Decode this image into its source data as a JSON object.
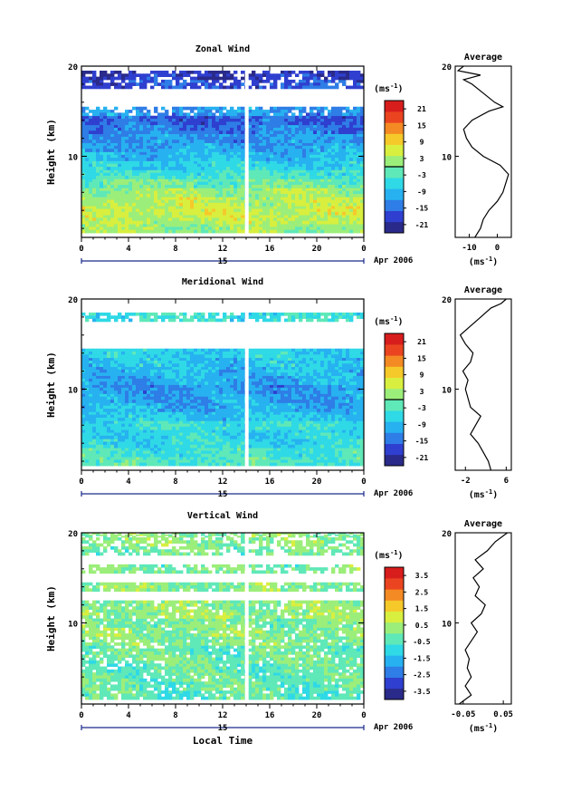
{
  "chart_data": [
    {
      "type": "heatmap",
      "title": "Zonal Wind",
      "ylabel": "Height (km)",
      "xticks": [
        "0",
        "4",
        "8",
        "12",
        "16",
        "20",
        "0"
      ],
      "x_day": "15",
      "x_month": "Apr 2006",
      "xlim": [
        0,
        24
      ],
      "ylim": [
        1,
        20
      ],
      "yticks": [
        "20",
        "10"
      ],
      "colorbar": {
        "unit_base": "(ms",
        "unit_exp": "-1",
        "unit_close": ")",
        "ticks": [
          "21",
          "15",
          "9",
          "3",
          "-3",
          "-9",
          "-15",
          "-21"
        ],
        "range": [
          -24,
          24
        ],
        "zero_line": 0
      },
      "profile": {
        "title": "Average",
        "xticks": [
          "-10",
          "0"
        ],
        "xlim": [
          -15,
          5
        ],
        "unit_base": "(ms",
        "unit_exp": "-1",
        "unit_close": ")",
        "points": [
          [
            -8,
            1
          ],
          [
            -6,
            2
          ],
          [
            -5,
            3
          ],
          [
            -3,
            4
          ],
          [
            0,
            5
          ],
          [
            2,
            6
          ],
          [
            3,
            7
          ],
          [
            4,
            8
          ],
          [
            1,
            9
          ],
          [
            -5,
            10
          ],
          [
            -9,
            11
          ],
          [
            -11,
            12
          ],
          [
            -12,
            13
          ],
          [
            -9,
            14
          ],
          [
            -3,
            15
          ],
          [
            2,
            15.5
          ],
          [
            -1,
            16
          ],
          [
            -5,
            17
          ],
          [
            -9,
            18
          ],
          [
            -12,
            18.5
          ],
          [
            -6,
            19
          ],
          [
            -14,
            19.5
          ],
          [
            -12,
            20
          ]
        ]
      },
      "field": {
        "rows": [
          {
            "h": 2,
            "v": 2
          },
          {
            "h": 3,
            "v": 4
          },
          {
            "h": 4,
            "v": 5
          },
          {
            "h": 5,
            "v": 4
          },
          {
            "h": 6,
            "v": 2
          },
          {
            "h": 7,
            "v": -1
          },
          {
            "h": 8,
            "v": -4
          },
          {
            "h": 9,
            "v": -7
          },
          {
            "h": 10,
            "v": -9
          },
          {
            "h": 11,
            "v": -11
          },
          {
            "h": 12,
            "v": -12
          },
          {
            "h": 13,
            "v": -14
          },
          {
            "h": 14,
            "v": -16
          },
          {
            "h": 15,
            "v": -12
          },
          {
            "h": 16,
            "v": null
          },
          {
            "h": 17,
            "v": null
          },
          {
            "h": 18,
            "v": -17
          },
          {
            "h": 19,
            "v": -19
          },
          {
            "h": 20,
            "v": null
          }
        ]
      }
    },
    {
      "type": "heatmap",
      "title": "Meridional Wind",
      "ylabel": "Height (km)",
      "xticks": [
        "0",
        "4",
        "8",
        "12",
        "16",
        "20",
        "0"
      ],
      "x_day": "15",
      "x_month": "Apr 2006",
      "xlim": [
        0,
        24
      ],
      "ylim": [
        1,
        20
      ],
      "yticks": [
        "20",
        "10"
      ],
      "colorbar": {
        "unit_base": "(ms",
        "unit_exp": "-1",
        "unit_close": ")",
        "ticks": [
          "21",
          "15",
          "9",
          "3",
          "-3",
          "-9",
          "-15",
          "-21"
        ],
        "range": [
          -24,
          24
        ],
        "zero_line": 0
      },
      "profile": {
        "title": "Average",
        "xticks": [
          "-2",
          "6"
        ],
        "xlim": [
          -4,
          7
        ],
        "unit_base": "(ms",
        "unit_exp": "-1",
        "unit_close": ")",
        "points": [
          [
            3,
            1
          ],
          [
            2.5,
            2
          ],
          [
            1.5,
            3
          ],
          [
            0.5,
            4
          ],
          [
            -1,
            5
          ],
          [
            0,
            6
          ],
          [
            1,
            7
          ],
          [
            -1,
            8
          ],
          [
            -1.5,
            9
          ],
          [
            -2,
            10
          ],
          [
            -1.5,
            11
          ],
          [
            -2.5,
            12
          ],
          [
            -1,
            13
          ],
          [
            -0.5,
            14
          ],
          [
            -2,
            15
          ],
          [
            -3,
            16
          ],
          [
            -1,
            17
          ],
          [
            1,
            18
          ],
          [
            3,
            19
          ],
          [
            5,
            19.5
          ],
          [
            6,
            20
          ]
        ]
      },
      "field": {
        "rows": [
          {
            "h": 2,
            "v": -3
          },
          {
            "h": 3,
            "v": -4
          },
          {
            "h": 4,
            "v": -6
          },
          {
            "h": 5,
            "v": -7
          },
          {
            "h": 6,
            "v": -5
          },
          {
            "h": 7,
            "v": -8
          },
          {
            "h": 8,
            "v": -10
          },
          {
            "h": 9,
            "v": -11
          },
          {
            "h": 10,
            "v": -12
          },
          {
            "h": 11,
            "v": -10
          },
          {
            "h": 12,
            "v": -9
          },
          {
            "h": 13,
            "v": -8
          },
          {
            "h": 14,
            "v": -7
          },
          {
            "h": 15,
            "v": null
          },
          {
            "h": 16,
            "v": null
          },
          {
            "h": 17,
            "v": null
          },
          {
            "h": 18,
            "v": -5
          },
          {
            "h": 19,
            "v": null
          },
          {
            "h": 20,
            "v": null
          }
        ]
      }
    },
    {
      "type": "heatmap",
      "title": "Vertical Wind",
      "ylabel": "Height (km)",
      "xticks": [
        "0",
        "4",
        "8",
        "12",
        "16",
        "20",
        "0"
      ],
      "x_day": "15",
      "x_month": "Apr 2006",
      "xlabel": "Local Time",
      "xlim": [
        0,
        24
      ],
      "ylim": [
        1,
        20
      ],
      "yticks": [
        "20",
        "10"
      ],
      "colorbar": {
        "unit_base": "(ms",
        "unit_exp": "-1",
        "unit_close": ")",
        "ticks": [
          "3.5",
          "2.5",
          "1.5",
          "0.5",
          "-0.5",
          "-1.5",
          "-2.5",
          "-3.5"
        ],
        "range": [
          -4,
          4
        ],
        "zero_line": null
      },
      "profile": {
        "title": "Average",
        "xticks": [
          "-0.05",
          "0.05"
        ],
        "xlim": [
          -0.07,
          0.07
        ],
        "unit_base": "(ms",
        "unit_exp": "-1",
        "unit_close": ")",
        "points": [
          [
            -0.06,
            1
          ],
          [
            -0.03,
            2
          ],
          [
            -0.045,
            3
          ],
          [
            -0.03,
            4
          ],
          [
            -0.04,
            5
          ],
          [
            -0.035,
            6
          ],
          [
            -0.045,
            7
          ],
          [
            -0.03,
            8
          ],
          [
            -0.015,
            9
          ],
          [
            -0.03,
            10
          ],
          [
            -0.005,
            11
          ],
          [
            0.005,
            12
          ],
          [
            -0.02,
            13
          ],
          [
            -0.01,
            14
          ],
          [
            -0.025,
            15
          ],
          [
            0.0,
            16
          ],
          [
            -0.02,
            17
          ],
          [
            0.01,
            18
          ],
          [
            0.03,
            19
          ],
          [
            0.06,
            20
          ]
        ]
      },
      "field": {
        "rows": [
          {
            "h": 2,
            "v": -0.4
          },
          {
            "h": 3,
            "v": -0.3
          },
          {
            "h": 4,
            "v": -0.2
          },
          {
            "h": 5,
            "v": -0.3
          },
          {
            "h": 6,
            "v": -0.1
          },
          {
            "h": 7,
            "v": -0.2
          },
          {
            "h": 8,
            "v": 0.1
          },
          {
            "h": 9,
            "v": 0.2
          },
          {
            "h": 10,
            "v": 0.0
          },
          {
            "h": 11,
            "v": 0.3
          },
          {
            "h": 12,
            "v": 0.2
          },
          {
            "h": 13,
            "v": null
          },
          {
            "h": 14,
            "v": 0.1
          },
          {
            "h": 15,
            "v": null
          },
          {
            "h": 16,
            "v": 0.0
          },
          {
            "h": 17,
            "v": null
          },
          {
            "h": 18,
            "v": -0.1
          },
          {
            "h": 19,
            "v": 0.2
          },
          {
            "h": 20,
            "v": 0.1
          }
        ]
      }
    }
  ],
  "colormap": [
    "#2a2a8a",
    "#2f3fcf",
    "#2f7de6",
    "#27b1f0",
    "#2fd9e6",
    "#5fe8b8",
    "#9cee7a",
    "#d8ef3f",
    "#f6c92a",
    "#f48a23",
    "#ea4520",
    "#d81d1d"
  ]
}
